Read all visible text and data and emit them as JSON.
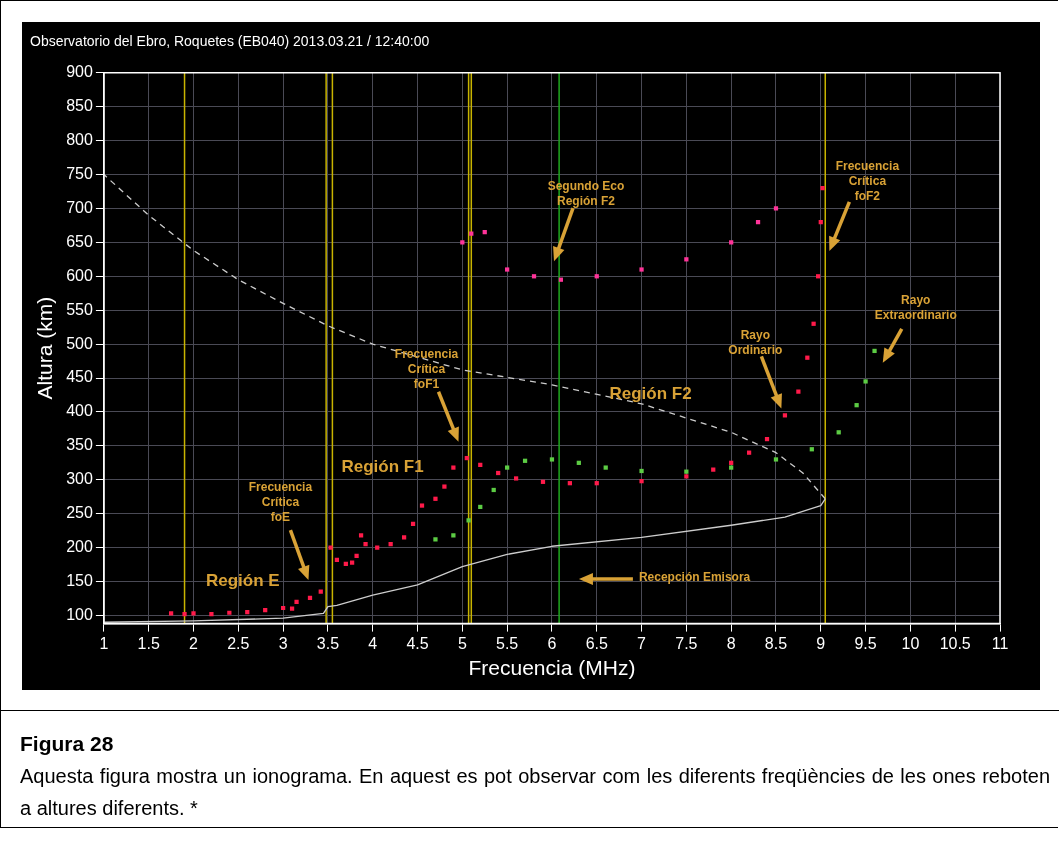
{
  "chart_data": {
    "type": "scatter",
    "title": "Observatorio del Ebro, Roquetes (EB040) 2013.03.21 / 12:40:00",
    "xlabel": "Frecuencia (MHz)",
    "ylabel": "Altura (km)",
    "xlim": [
      1,
      11
    ],
    "xticks": [
      1,
      1.5,
      2,
      2.5,
      3,
      3.5,
      4,
      4.5,
      5,
      5.5,
      6,
      6.5,
      7,
      7.5,
      8,
      8.5,
      9,
      9.5,
      10,
      10.5,
      11
    ],
    "ylim": [
      88,
      900
    ],
    "yticks": [
      100,
      150,
      200,
      250,
      300,
      350,
      400,
      450,
      500,
      550,
      600,
      650,
      700,
      750,
      800,
      850,
      900
    ],
    "grid": true,
    "legend": false,
    "marker": "square",
    "series": [
      {
        "type": "scatter",
        "color": "#ff1a4a",
        "x": [
          1.75,
          1.9,
          2.0,
          2.2,
          2.4,
          2.6,
          2.8,
          3.0,
          3.1,
          3.15,
          3.3,
          3.42,
          3.53,
          3.6,
          3.7,
          3.77,
          3.82,
          3.87,
          3.92,
          4.05,
          4.2,
          4.35,
          4.45,
          4.55,
          4.7,
          4.8,
          4.9,
          5.05,
          5.2,
          5.4,
          5.6,
          5.9,
          6.2,
          6.5,
          7.0,
          7.5,
          7.8,
          8.0,
          8.2,
          8.4,
          8.6,
          8.75,
          8.85,
          8.92,
          8.97,
          9.0,
          9.02
        ],
        "values": [
          103,
          102,
          103,
          102,
          104,
          105,
          108,
          111,
          110,
          120,
          126,
          135,
          200,
          182,
          176,
          178,
          188,
          218,
          205,
          200,
          205,
          215,
          235,
          262,
          272,
          290,
          318,
          332,
          322,
          310,
          302,
          297,
          295,
          295,
          298,
          305,
          315,
          325,
          340,
          360,
          395,
          430,
          480,
          530,
          600,
          680,
          730
        ]
      },
      {
        "type": "scatter",
        "color": "#5ccc44",
        "x": [
          4.7,
          4.9,
          5.07,
          5.2,
          5.35,
          5.5,
          5.7,
          6.0,
          6.3,
          6.6,
          7.0,
          7.5,
          8.0,
          8.5,
          8.9,
          9.2,
          9.4,
          9.5,
          9.6
        ],
        "values": [
          212,
          218,
          240,
          260,
          285,
          318,
          328,
          330,
          325,
          318,
          313,
          312,
          318,
          330,
          345,
          370,
          410,
          445,
          490
        ]
      },
      {
        "type": "scatter",
        "color": "#ff3399",
        "x": [
          5.0,
          5.1,
          5.25,
          5.5,
          5.8,
          6.1,
          6.5,
          7.0,
          7.5,
          8.0,
          8.3,
          8.5
        ],
        "values": [
          650,
          663,
          665,
          610,
          600,
          595,
          600,
          610,
          625,
          650,
          680,
          700
        ]
      },
      {
        "type": "line",
        "color": "#cccccc",
        "line_style": "solid",
        "marker": "none",
        "x": [
          1,
          2,
          3,
          3.45,
          3.5,
          3.6,
          4,
          4.5,
          5,
          5.5,
          6,
          7,
          8,
          8.6,
          9.0,
          9.05
        ],
        "values": [
          90,
          92,
          96,
          103,
          113,
          115,
          130,
          145,
          172,
          190,
          202,
          215,
          233,
          245,
          262,
          272
        ]
      },
      {
        "type": "line",
        "color": "#cccccc",
        "line_style": "dashed",
        "marker": "none",
        "x": [
          9.05,
          8.8,
          8.5,
          8.0,
          7.0,
          6.0,
          5.0,
          4.0,
          3.5,
          3.0,
          2.5,
          2.0,
          1.5,
          1.0
        ],
        "values": [
          272,
          310,
          340,
          370,
          412,
          440,
          462,
          500,
          527,
          560,
          595,
          638,
          690,
          750
        ]
      }
    ],
    "ref_lines": [
      {
        "axis": "x",
        "value": 1.9,
        "color": "#c8b400"
      },
      {
        "axis": "x",
        "value": 3.48,
        "color": "#c8b400"
      },
      {
        "axis": "x",
        "value": 3.55,
        "color": "#c8b400"
      },
      {
        "axis": "x",
        "value": 5.07,
        "color": "#c8b400"
      },
      {
        "axis": "x",
        "value": 5.1,
        "color": "#c8b400"
      },
      {
        "axis": "x",
        "value": 9.05,
        "color": "#c8b400"
      },
      {
        "axis": "x",
        "value": 6.08,
        "color": "#1fa81f"
      }
    ],
    "annotations": [
      "Región E",
      "Frecuencia\nCrítica\nfoE",
      "Región F1",
      "Frecuencia\nCrítica\nfoF1",
      "Segundo Eco\nRegión F2",
      "Frecuencia\nCrítica\nfoF2",
      "Rayo\nExtraordinario",
      "Rayo\nOrdinario",
      "Región F2",
      "Recepción Emisora",
      "Figura 28",
      "Aquesta figura mostra un ionograma. En aquest es pot observar com les diferents freqüències de les ones reboten a altures diferents. *"
    ]
  }
}
